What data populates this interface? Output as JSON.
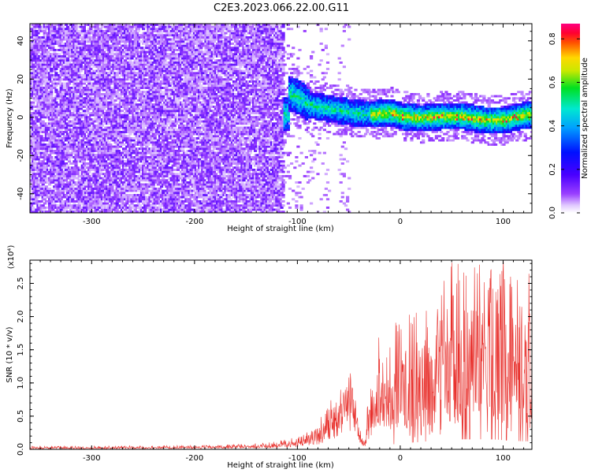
{
  "title": "C2E3.2023.066.22.00.G11",
  "colors": {
    "snr_line": "#e8302c",
    "spectrogram_palette": [
      "#ffffff",
      "#d8b8f8",
      "#8a2be2",
      "#6a00f0",
      "#2020ff",
      "#00a8ff",
      "#00e8c8",
      "#00e040",
      "#a8e000",
      "#ffe000",
      "#ff8000",
      "#ff0000",
      "#ff0090"
    ]
  },
  "chart_data": [
    {
      "type": "heatmap",
      "xlabel": "Height of straight line (km)",
      "ylabel": "Frequency (Hz)",
      "xlim": [
        -360,
        128
      ],
      "ylim": [
        -50,
        49
      ],
      "xticks": [
        -300,
        -200,
        -100,
        0,
        100
      ],
      "xtick_labels": [
        "-300",
        "-200",
        "-100",
        "0",
        "100"
      ],
      "yticks": [
        -40,
        -20,
        0,
        20,
        40
      ],
      "ytick_labels": [
        "-40",
        "-20",
        "0",
        "20",
        "40"
      ],
      "colorbar": {
        "label": "Normalized spectral amplitude",
        "range": [
          0.0,
          0.87
        ],
        "ticks": [
          0.0,
          0.2,
          0.4,
          0.6,
          0.8
        ],
        "tick_labels": [
          "0.0",
          "0.2",
          "0.4",
          "0.6",
          "0.8"
        ]
      },
      "regions": [
        {
          "x_range": [
            -360,
            -115
          ],
          "freq_range": [
            -50,
            49
          ],
          "amplitude": "low-moderate noise (~0.1-0.15)"
        },
        {
          "x_range": [
            -115,
            -90
          ],
          "freq_range": [
            -5,
            25
          ],
          "amplitude": "~0.2-0.3"
        },
        {
          "x_range": [
            -90,
            128
          ],
          "freq_range": [
            -10,
            12
          ],
          "amplitude": "signal band, peaks ~0.7-0.87 near 0 Hz"
        }
      ],
      "signal_center_hz": [
        {
          "x": -110,
          "hz": 12
        },
        {
          "x": -100,
          "hz": 10
        },
        {
          "x": -90,
          "hz": 6
        },
        {
          "x": -70,
          "hz": 4
        },
        {
          "x": -50,
          "hz": 2
        },
        {
          "x": -30,
          "hz": 1
        },
        {
          "x": -10,
          "hz": 2
        },
        {
          "x": 0,
          "hz": 0
        },
        {
          "x": 20,
          "hz": -1
        },
        {
          "x": 40,
          "hz": 0
        },
        {
          "x": 60,
          "hz": 0
        },
        {
          "x": 80,
          "hz": -2
        },
        {
          "x": 100,
          "hz": -2
        },
        {
          "x": 115,
          "hz": 0
        },
        {
          "x": 128,
          "hz": 1
        }
      ]
    },
    {
      "type": "line",
      "xlabel": "Height of straight line (km)",
      "ylabel": "SNR (10 * v/v)",
      "y_multiplier": "(x10⁴)",
      "xlim": [
        -360,
        128
      ],
      "ylim": [
        0,
        2.85
      ],
      "xticks": [
        -300,
        -200,
        -100,
        0,
        100
      ],
      "xtick_labels": [
        "-300",
        "-200",
        "-100",
        "0",
        "100"
      ],
      "yticks": [
        0.0,
        0.5,
        1.0,
        1.5,
        2.0,
        2.5
      ],
      "ytick_labels": [
        "0.0",
        "0.5",
        "1.0",
        "1.5",
        "2.0",
        "2.5"
      ],
      "series": [
        {
          "x": [
            -360,
            -300,
            -200,
            -150,
            -120,
            -100,
            -90,
            -80,
            -70,
            -60,
            -55,
            -50,
            -45,
            -40,
            -35,
            -30,
            -25,
            -20,
            -15,
            -10,
            -5,
            0,
            10,
            20,
            30,
            40,
            50,
            60,
            70,
            80,
            90,
            100,
            110,
            120,
            128
          ],
          "mean": [
            0.02,
            0.02,
            0.03,
            0.04,
            0.06,
            0.1,
            0.15,
            0.2,
            0.35,
            0.5,
            0.6,
            0.8,
            0.6,
            0.2,
            0.1,
            0.3,
            0.5,
            0.7,
            0.65,
            0.7,
            0.8,
            0.9,
            1.0,
            1.1,
            1.3,
            1.4,
            1.5,
            1.5,
            1.55,
            1.5,
            1.5,
            1.4,
            1.3,
            1.2,
            1.2
          ],
          "max": [
            0.05,
            0.05,
            0.06,
            0.08,
            0.12,
            0.2,
            0.3,
            0.4,
            0.7,
            0.9,
            1.05,
            1.35,
            1.0,
            0.35,
            0.25,
            0.9,
            1.3,
            2.0,
            1.3,
            1.6,
            1.9,
            2.0,
            2.05,
            2.1,
            2.3,
            2.5,
            2.85,
            2.85,
            2.8,
            2.85,
            2.7,
            2.85,
            2.6,
            2.8,
            2.85
          ]
        }
      ]
    }
  ]
}
